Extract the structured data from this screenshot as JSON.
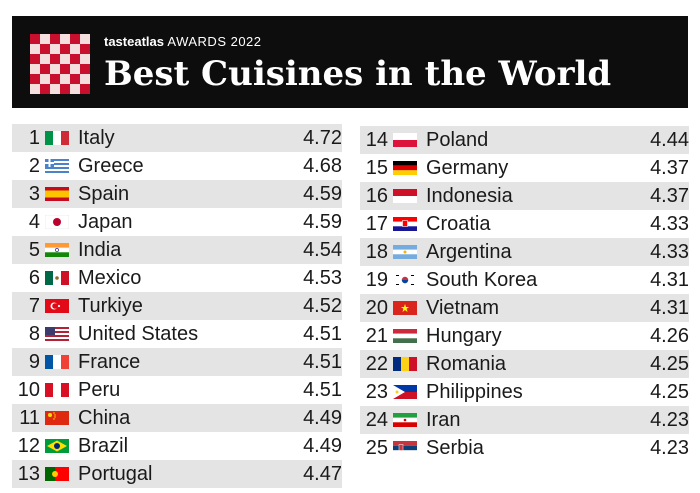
{
  "header": {
    "brand_name": "tasteatlas",
    "brand_awards": "AWARDS 2022",
    "title": "Best Cuisines in the World"
  },
  "rankings": [
    {
      "rank": "1",
      "country": "Italy",
      "score": "4.72",
      "flag": "italy-flag-icon"
    },
    {
      "rank": "2",
      "country": "Greece",
      "score": "4.68",
      "flag": "greece-flag-icon"
    },
    {
      "rank": "3",
      "country": "Spain",
      "score": "4.59",
      "flag": "spain-flag-icon"
    },
    {
      "rank": "4",
      "country": "Japan",
      "score": "4.59",
      "flag": "japan-flag-icon"
    },
    {
      "rank": "5",
      "country": "India",
      "score": "4.54",
      "flag": "india-flag-icon"
    },
    {
      "rank": "6",
      "country": "Mexico",
      "score": "4.53",
      "flag": "mexico-flag-icon"
    },
    {
      "rank": "7",
      "country": "Turkiye",
      "score": "4.52",
      "flag": "turkiye-flag-icon"
    },
    {
      "rank": "8",
      "country": "United States",
      "score": "4.51",
      "flag": "united-states-flag-icon"
    },
    {
      "rank": "9",
      "country": "France",
      "score": "4.51",
      "flag": "france-flag-icon"
    },
    {
      "rank": "10",
      "country": "Peru",
      "score": "4.51",
      "flag": "peru-flag-icon"
    },
    {
      "rank": "11",
      "country": "China",
      "score": "4.49",
      "flag": "china-flag-icon"
    },
    {
      "rank": "12",
      "country": "Brazil",
      "score": "4.49",
      "flag": "brazil-flag-icon"
    },
    {
      "rank": "13",
      "country": "Portugal",
      "score": "4.47",
      "flag": "portugal-flag-icon"
    },
    {
      "rank": "14",
      "country": "Poland",
      "score": "4.44",
      "flag": "poland-flag-icon"
    },
    {
      "rank": "15",
      "country": "Germany",
      "score": "4.37",
      "flag": "germany-flag-icon"
    },
    {
      "rank": "16",
      "country": "Indonesia",
      "score": "4.37",
      "flag": "indonesia-flag-icon"
    },
    {
      "rank": "17",
      "country": "Croatia",
      "score": "4.33",
      "flag": "croatia-flag-icon"
    },
    {
      "rank": "18",
      "country": "Argentina",
      "score": "4.33",
      "flag": "argentina-flag-icon"
    },
    {
      "rank": "19",
      "country": "South Korea",
      "score": "4.31",
      "flag": "south-korea-flag-icon"
    },
    {
      "rank": "20",
      "country": "Vietnam",
      "score": "4.31",
      "flag": "vietnam-flag-icon"
    },
    {
      "rank": "21",
      "country": "Hungary",
      "score": "4.26",
      "flag": "hungary-flag-icon"
    },
    {
      "rank": "22",
      "country": "Romania",
      "score": "4.25",
      "flag": "romania-flag-icon"
    },
    {
      "rank": "23",
      "country": "Philippines",
      "score": "4.25",
      "flag": "philippines-flag-icon"
    },
    {
      "rank": "24",
      "country": "Iran",
      "score": "4.23",
      "flag": "iran-flag-icon"
    },
    {
      "rank": "25",
      "country": "Serbia",
      "score": "4.23",
      "flag": "serbia-flag-icon"
    }
  ],
  "colors": {
    "banner_bg": "#0d0d0d",
    "row_shade": "#e4e4e4",
    "logo_red": "#c8102e"
  }
}
